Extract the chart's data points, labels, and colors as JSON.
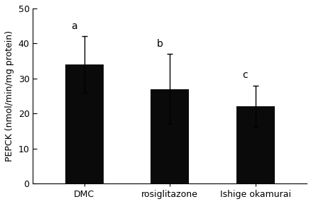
{
  "categories": [
    "DMC",
    "rosiglitazone",
    "Ishige okamurai"
  ],
  "values": [
    34.0,
    27.0,
    22.0
  ],
  "errors": [
    8.0,
    10.0,
    6.0
  ],
  "bar_color": "#0a0a0a",
  "bar_width": 0.45,
  "ylim": [
    0,
    50
  ],
  "yticks": [
    0,
    10,
    20,
    30,
    40,
    50
  ],
  "ylabel": "PEPCK (nmol/min/mg protein)",
  "letters": [
    "a",
    "b",
    "c"
  ],
  "letter_offsets": [
    1.5,
    1.5,
    1.5
  ],
  "background_color": "#ffffff",
  "tick_fontsize": 9,
  "label_fontsize": 9,
  "letter_fontsize": 10,
  "xlabel_fontsize": 9
}
